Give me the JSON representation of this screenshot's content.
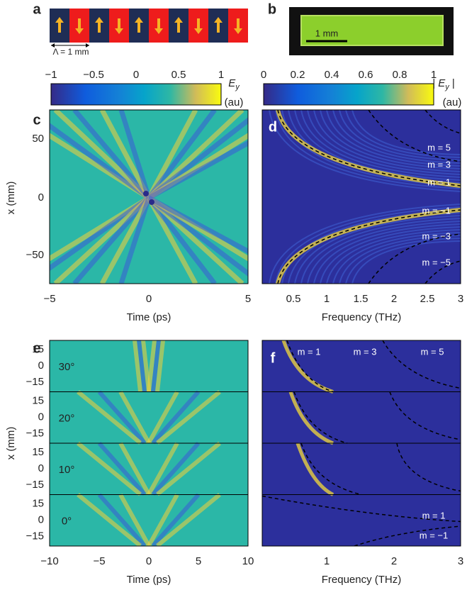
{
  "panel_labels": [
    "a",
    "b",
    "c",
    "d",
    "e",
    "f"
  ],
  "a": {
    "period_label": "Λ = 1 mm"
  },
  "b": {
    "scale_label": "1 mm"
  },
  "colorbar_left": {
    "ticks": [
      "−1",
      "−0.5",
      "0",
      "0.5",
      "1"
    ],
    "symbol": "E",
    "subscript": "y",
    "unit": "(au)"
  },
  "colorbar_right": {
    "ticks": [
      "0",
      "0.2",
      "0.4",
      "0.6",
      "0.8",
      "1"
    ],
    "symbol": "| E",
    "subscript": "y",
    "symbol_end": " |",
    "unit": "(au)"
  },
  "c": {
    "xticks": [
      "−5",
      "0",
      "5"
    ],
    "yticks": [
      "50",
      "0",
      "−50"
    ],
    "xlabel": "Time (ps)",
    "ylabel": "x (mm)"
  },
  "d": {
    "xticks": [
      "0.5",
      "1",
      "1.5",
      "2",
      "2.5",
      "3"
    ],
    "xlabel": "Frequency (THz)",
    "modes": [
      "m = 5",
      "m = 3",
      "m = 1",
      "m = −1",
      "m = −3",
      "m = −5"
    ]
  },
  "e": {
    "xticks": [
      "−10",
      "−5",
      "0",
      "5",
      "10"
    ],
    "yticks": [
      "15",
      "0",
      "−15"
    ],
    "angles": [
      "30°",
      "20°",
      "10°",
      "0°"
    ],
    "xlabel": "Time (ps)",
    "ylabel": "x (mm)"
  },
  "f": {
    "xticks": [
      "1",
      "2",
      "3"
    ],
    "modes_top": [
      "m = 1",
      "m = 3",
      "m = 5"
    ],
    "modes_bottom": [
      "m = 1",
      "m = −1"
    ],
    "xlabel": "Frequency (THz)"
  }
}
